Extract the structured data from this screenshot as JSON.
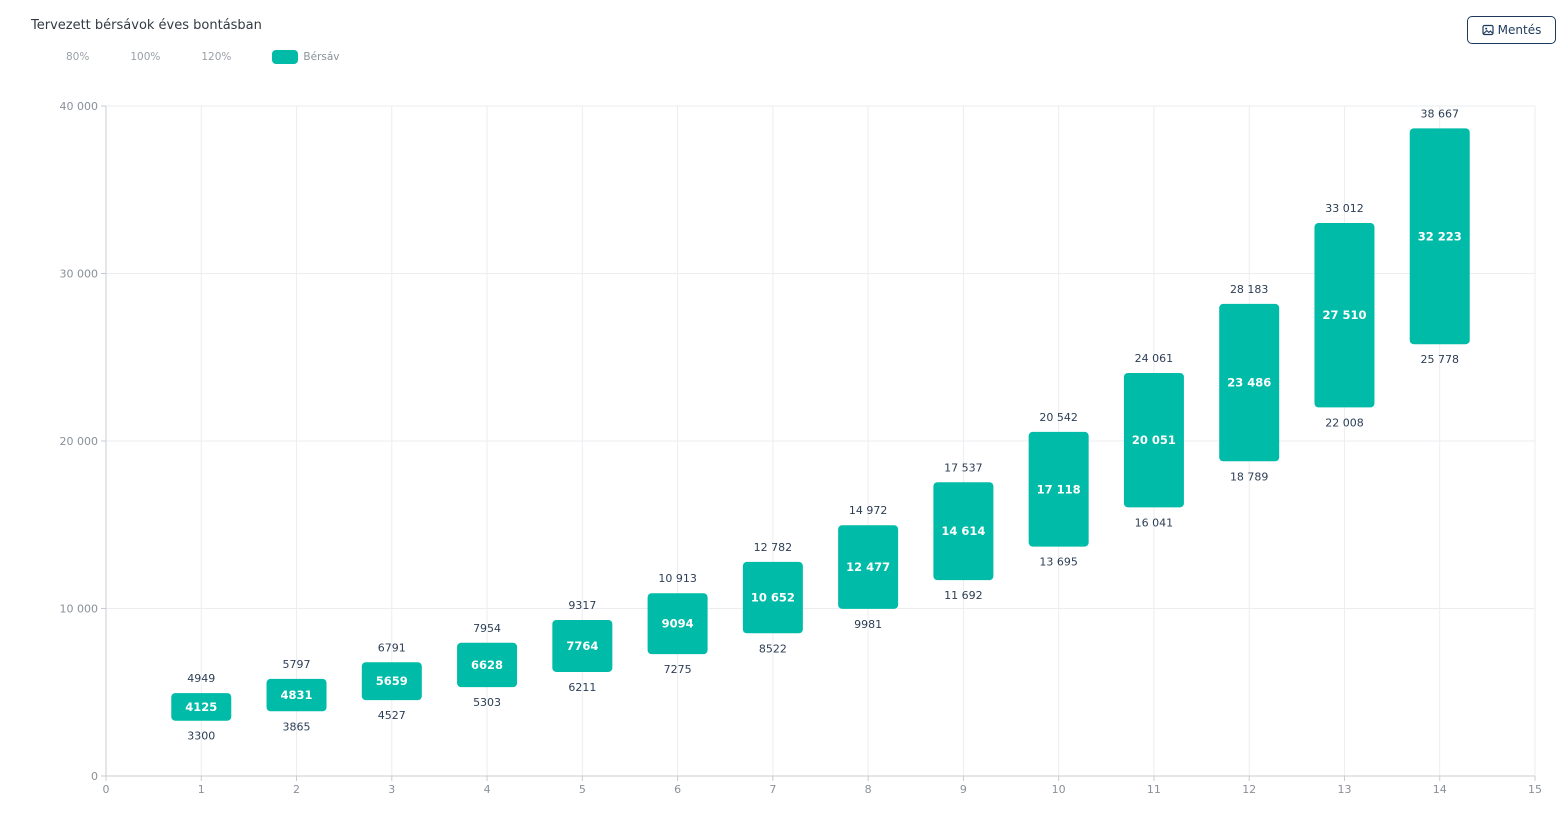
{
  "header": {
    "title": "Tervezett bérsávok éves bontásban",
    "save_label": "Mentés",
    "save_icon": "image-icon"
  },
  "legend": [
    {
      "label": "80%",
      "active": false
    },
    {
      "label": "100%",
      "active": false
    },
    {
      "label": "120%",
      "active": false
    },
    {
      "label": "Bérsáv",
      "active": true,
      "color": "#00bba7"
    }
  ],
  "colors": {
    "bar": "#00bba7",
    "grid": "#ebedf0",
    "axis": "#c8ccd2"
  },
  "chart_data": {
    "type": "bar",
    "subtype": "floating-range",
    "title": "Tervezett bérsávok éves bontásban",
    "xlabel": "",
    "ylabel": "",
    "xlim": [
      0,
      15
    ],
    "ylim": [
      0,
      40000
    ],
    "xticks": [
      0,
      1,
      2,
      3,
      4,
      5,
      6,
      7,
      8,
      9,
      10,
      11,
      12,
      13,
      14,
      15
    ],
    "yticks": [
      0,
      10000,
      20000,
      30000,
      40000
    ],
    "ytick_labels": [
      "0",
      "10 000",
      "20 000",
      "30 000",
      "40 000"
    ],
    "grid": true,
    "series": [
      {
        "name": "Bérsáv",
        "x": [
          1,
          2,
          3,
          4,
          5,
          6,
          7,
          8,
          9,
          10,
          11,
          12,
          13,
          14
        ],
        "low": [
          3300,
          3865,
          4527,
          5303,
          6211,
          7275,
          8522,
          9981,
          11692,
          13695,
          16041,
          18789,
          22008,
          25778
        ],
        "mid": [
          4125,
          4831,
          5659,
          6628,
          7764,
          9094,
          10652,
          12477,
          14614,
          17118,
          20051,
          23486,
          27510,
          32223
        ],
        "high": [
          4949,
          5797,
          6791,
          7954,
          9317,
          10913,
          12782,
          14972,
          17537,
          20542,
          24061,
          28183,
          33012,
          38667
        ],
        "low_labels": [
          "3300",
          "3865",
          "4527",
          "5303",
          "6211",
          "7275",
          "8522",
          "9981",
          "11 692",
          "13 695",
          "16 041",
          "18 789",
          "22 008",
          "25 778"
        ],
        "mid_labels": [
          "4125",
          "4831",
          "5659",
          "6628",
          "7764",
          "9094",
          "10 652",
          "12 477",
          "14 614",
          "17 118",
          "20 051",
          "23 486",
          "27 510",
          "32 223"
        ],
        "high_labels": [
          "4949",
          "5797",
          "6791",
          "7954",
          "9317",
          "10 913",
          "12 782",
          "14 972",
          "17 537",
          "20 542",
          "24 061",
          "28 183",
          "33 012",
          "38 667"
        ]
      }
    ]
  }
}
